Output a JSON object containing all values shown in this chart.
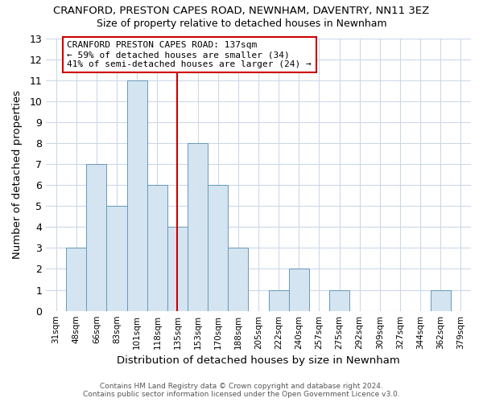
{
  "title": "CRANFORD, PRESTON CAPES ROAD, NEWNHAM, DAVENTRY, NN11 3EZ",
  "subtitle": "Size of property relative to detached houses in Newnham",
  "xlabel": "Distribution of detached houses by size in Newnham",
  "ylabel": "Number of detached properties",
  "bin_labels": [
    "31sqm",
    "48sqm",
    "66sqm",
    "83sqm",
    "101sqm",
    "118sqm",
    "135sqm",
    "153sqm",
    "170sqm",
    "188sqm",
    "205sqm",
    "222sqm",
    "240sqm",
    "257sqm",
    "275sqm",
    "292sqm",
    "309sqm",
    "327sqm",
    "344sqm",
    "362sqm",
    "379sqm"
  ],
  "counts": [
    0,
    3,
    7,
    5,
    11,
    6,
    4,
    8,
    6,
    3,
    0,
    1,
    2,
    0,
    1,
    0,
    0,
    0,
    0,
    1,
    0
  ],
  "bar_color": "#d4e4f0",
  "bar_edge_color": "#6699bb",
  "grid_color": "#ccd9e8",
  "reference_line_x": 6,
  "reference_line_color": "#cc0000",
  "annotation_title": "CRANFORD PRESTON CAPES ROAD: 137sqm",
  "annotation_line1": "← 59% of detached houses are smaller (34)",
  "annotation_line2": "41% of semi-detached houses are larger (24) →",
  "annotation_box_color": "#ffffff",
  "annotation_box_edge": "#cc0000",
  "footer1": "Contains HM Land Registry data © Crown copyright and database right 2024.",
  "footer2": "Contains public sector information licensed under the Open Government Licence v3.0.",
  "ylim": [
    0,
    13
  ],
  "background_color": "#ffffff"
}
